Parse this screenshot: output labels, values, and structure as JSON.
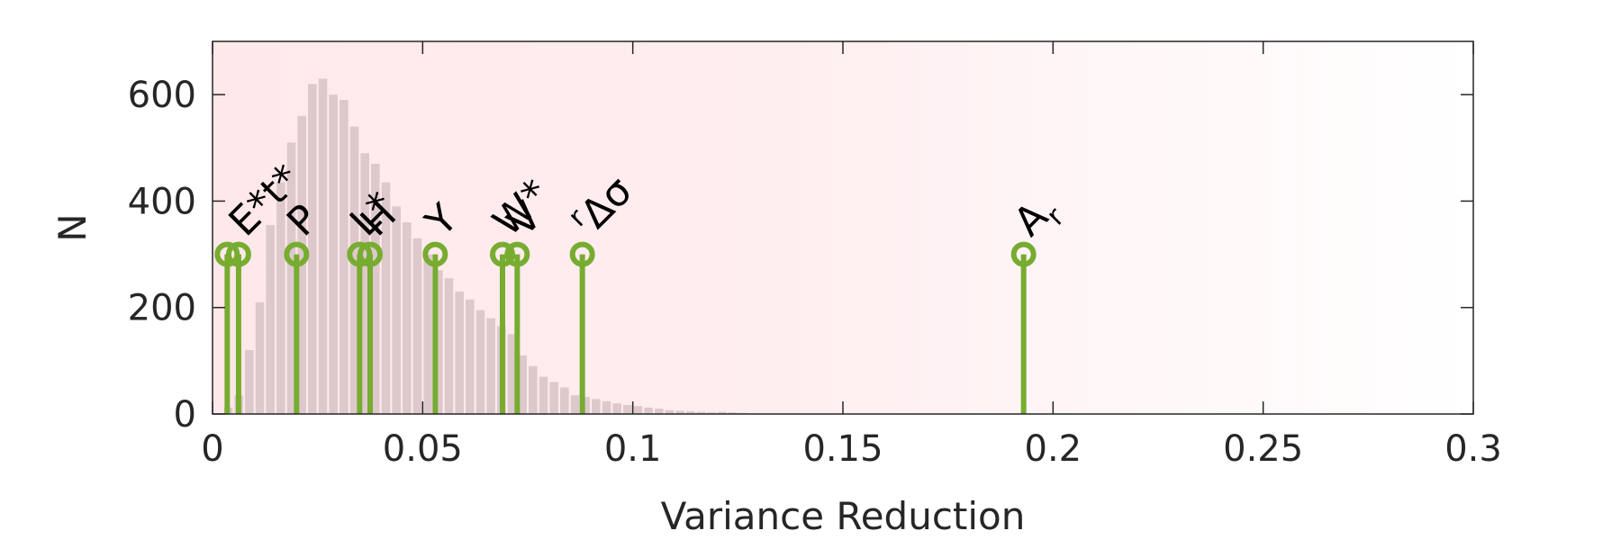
{
  "chart_data": {
    "type": "bar",
    "xlabel": "Variance Reduction",
    "ylabel": "N",
    "xlim": [
      0,
      0.3
    ],
    "ylim": [
      0,
      700
    ],
    "xticks": [
      0,
      0.05,
      0.1,
      0.15,
      0.2,
      0.25,
      0.3
    ],
    "xtick_labels": [
      "0",
      "0.05",
      "0.1",
      "0.15",
      "0.2",
      "0.25",
      "0.3"
    ],
    "yticks": [
      0,
      200,
      400,
      600
    ],
    "ytick_labels": [
      "0",
      "200",
      "400",
      "600"
    ],
    "grid": false,
    "histogram": {
      "bin_width": 0.0025,
      "bin_start": 0,
      "counts": [
        0,
        12,
        35,
        120,
        210,
        355,
        435,
        510,
        560,
        620,
        630,
        600,
        590,
        540,
        490,
        470,
        435,
        390,
        360,
        330,
        300,
        270,
        255,
        230,
        215,
        195,
        180,
        165,
        150,
        110,
        90,
        70,
        60,
        50,
        35,
        32,
        28,
        24,
        20,
        17,
        15,
        12,
        10,
        7,
        6,
        5,
        4,
        3,
        4,
        3,
        2,
        1,
        1,
        1,
        1,
        1,
        0
      ],
      "color": "#ddc9cc"
    },
    "stems": [
      {
        "x": 0.0035,
        "y": 300,
        "base": "",
        "sub": "",
        "sup": ""
      },
      {
        "x": 0.0062,
        "y": 300,
        "base": "E*t*",
        "sub": "",
        "sup": ""
      },
      {
        "x": 0.02,
        "y": 300,
        "base": "P",
        "sub": "",
        "sup": ""
      },
      {
        "x": 0.035,
        "y": 300,
        "base": "L*",
        "sub": "",
        "sup": ""
      },
      {
        "x": 0.0375,
        "y": 300,
        "base": "H",
        "sub": "",
        "sup": ""
      },
      {
        "x": 0.053,
        "y": 300,
        "base": "Y",
        "sub": "",
        "sup": ""
      },
      {
        "x": 0.069,
        "y": 300,
        "base": "W*",
        "sub": "",
        "sup": ""
      },
      {
        "x": 0.0725,
        "y": 300,
        "base": "V",
        "sub": "",
        "sup": ""
      },
      {
        "x": 0.088,
        "y": 300,
        "base": "",
        "sub": "",
        "sup": "r",
        "tail": "Δσ"
      },
      {
        "x": 0.193,
        "y": 300,
        "base": "A",
        "sub": "r",
        "sup": ""
      }
    ],
    "stem_color": "#77ac30",
    "background_gradient": [
      "#ffe8ea",
      "#ffffff"
    ]
  }
}
